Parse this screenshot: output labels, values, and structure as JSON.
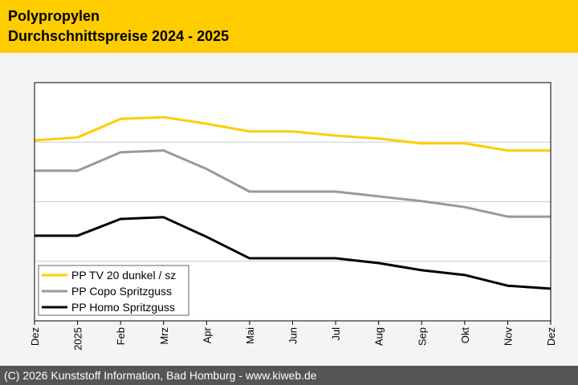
{
  "header": {
    "title": "Polypropylen",
    "subtitle": "Durchschnittspreise 2024 - 2025"
  },
  "footer": {
    "text": "(C) 2026 Kunststoff Information, Bad Homburg - www.kiweb.de"
  },
  "chart_data": {
    "type": "line",
    "title": "Polypropylen Durchschnittspreise 2024 - 2025",
    "categories": [
      "Dez",
      "2025",
      "Feb",
      "Mrz",
      "Apr",
      "Mai",
      "Jun",
      "Jul",
      "Aug",
      "Sep",
      "Okt",
      "Nov",
      "Dez"
    ],
    "ylim": [
      0,
      4
    ],
    "grid": true,
    "legend": "bottom-left",
    "series": [
      {
        "name": "PP TV 20 dunkel / sz",
        "color": "#ffcc00",
        "values": [
          3.03,
          3.08,
          3.39,
          3.42,
          3.31,
          3.18,
          3.18,
          3.11,
          3.06,
          2.98,
          2.98,
          2.86,
          2.86
        ]
      },
      {
        "name": "PP Copo Spritzguss",
        "color": "#999999",
        "values": [
          2.52,
          2.52,
          2.83,
          2.86,
          2.55,
          2.17,
          2.17,
          2.17,
          2.09,
          2.01,
          1.91,
          1.75,
          1.75
        ]
      },
      {
        "name": "PP Homo Spritzguss",
        "color": "#000000",
        "values": [
          1.43,
          1.43,
          1.71,
          1.74,
          1.41,
          1.05,
          1.05,
          1.05,
          0.97,
          0.85,
          0.77,
          0.59,
          0.54
        ]
      }
    ]
  }
}
